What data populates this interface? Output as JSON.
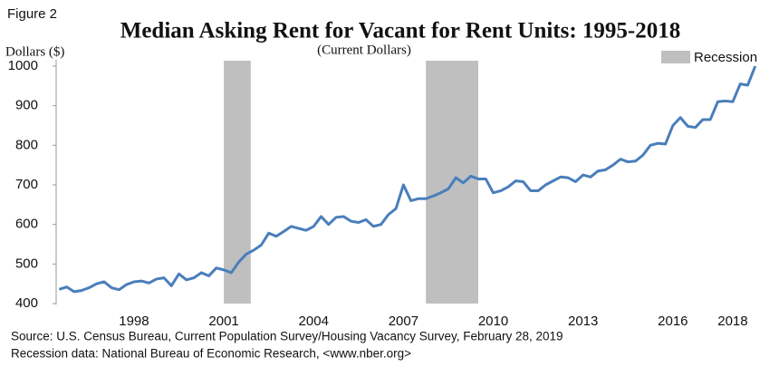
{
  "chart_data": {
    "type": "line",
    "figure_label": "Figure 2",
    "title": "Median Asking Rent for Vacant for Rent Units: 1995-2018",
    "subtitle": "(Current Dollars)",
    "y_label": "Dollars ($)",
    "source": "Source: U.S. Census Bureau, Current Population Survey/Housing Vacancy Survey, February 28, 2019",
    "source_note": "Recession data: National Bureau of Economic Research, <www.nber.org>",
    "x": [
      1995.5,
      1995.75,
      1996,
      1996.25,
      1996.5,
      1996.75,
      1997,
      1997.25,
      1997.5,
      1997.75,
      1998,
      1998.25,
      1998.5,
      1998.75,
      1999,
      1999.25,
      1999.5,
      1999.75,
      2000,
      2000.25,
      2000.5,
      2000.75,
      2001,
      2001.25,
      2001.5,
      2001.75,
      2002,
      2002.25,
      2002.5,
      2002.75,
      2003,
      2003.25,
      2003.5,
      2003.75,
      2004,
      2004.25,
      2004.5,
      2004.75,
      2005,
      2005.25,
      2005.5,
      2005.75,
      2006,
      2006.25,
      2006.5,
      2006.75,
      2007,
      2007.25,
      2007.5,
      2007.75,
      2008,
      2008.25,
      2008.5,
      2008.75,
      2009,
      2009.25,
      2009.5,
      2009.75,
      2010,
      2010.25,
      2010.5,
      2010.75,
      2011,
      2011.25,
      2011.5,
      2011.75,
      2012,
      2012.25,
      2012.5,
      2012.75,
      2013,
      2013.25,
      2013.5,
      2013.75,
      2014,
      2014.25,
      2014.5,
      2014.75,
      2015,
      2015.25,
      2015.5,
      2015.75,
      2016,
      2016.25,
      2016.5,
      2016.75,
      2017,
      2017.25,
      2017.5,
      2017.75,
      2018,
      2018.25,
      2018.5,
      2018.75
    ],
    "series": [
      {
        "name": "Median asking rent",
        "color": "#4a7ebb",
        "values": [
          436,
          442,
          430,
          433,
          440,
          450,
          455,
          440,
          435,
          448,
          455,
          457,
          452,
          462,
          465,
          445,
          475,
          460,
          465,
          478,
          470,
          490,
          485,
          478,
          505,
          525,
          535,
          548,
          578,
          570,
          582,
          595,
          590,
          585,
          595,
          620,
          600,
          618,
          620,
          608,
          605,
          612,
          595,
          600,
          625,
          640,
          700,
          660,
          665,
          665,
          672,
          680,
          690,
          718,
          705,
          722,
          715,
          715,
          680,
          685,
          695,
          710,
          708,
          685,
          685,
          700,
          710,
          720,
          718,
          708,
          725,
          720,
          735,
          738,
          750,
          765,
          758,
          760,
          775,
          800,
          805,
          803,
          850,
          870,
          848,
          845,
          865,
          865,
          910,
          912,
          910,
          955,
          952,
          1000
        ]
      }
    ],
    "recessions": {
      "name": "Recession",
      "color": "#bfbfbf",
      "ranges": [
        [
          2001,
          2001.9
        ],
        [
          2007.75,
          2009.5
        ]
      ]
    },
    "xlim": [
      1995.4,
      2019
    ],
    "xticks": [
      1998,
      2001,
      2004,
      2007,
      2010,
      2013,
      2016,
      2018
    ],
    "ylim": [
      400,
      1000
    ],
    "yticks": [
      400,
      500,
      600,
      700,
      800,
      900,
      1000
    ],
    "grid": false,
    "legend": "top-right"
  }
}
